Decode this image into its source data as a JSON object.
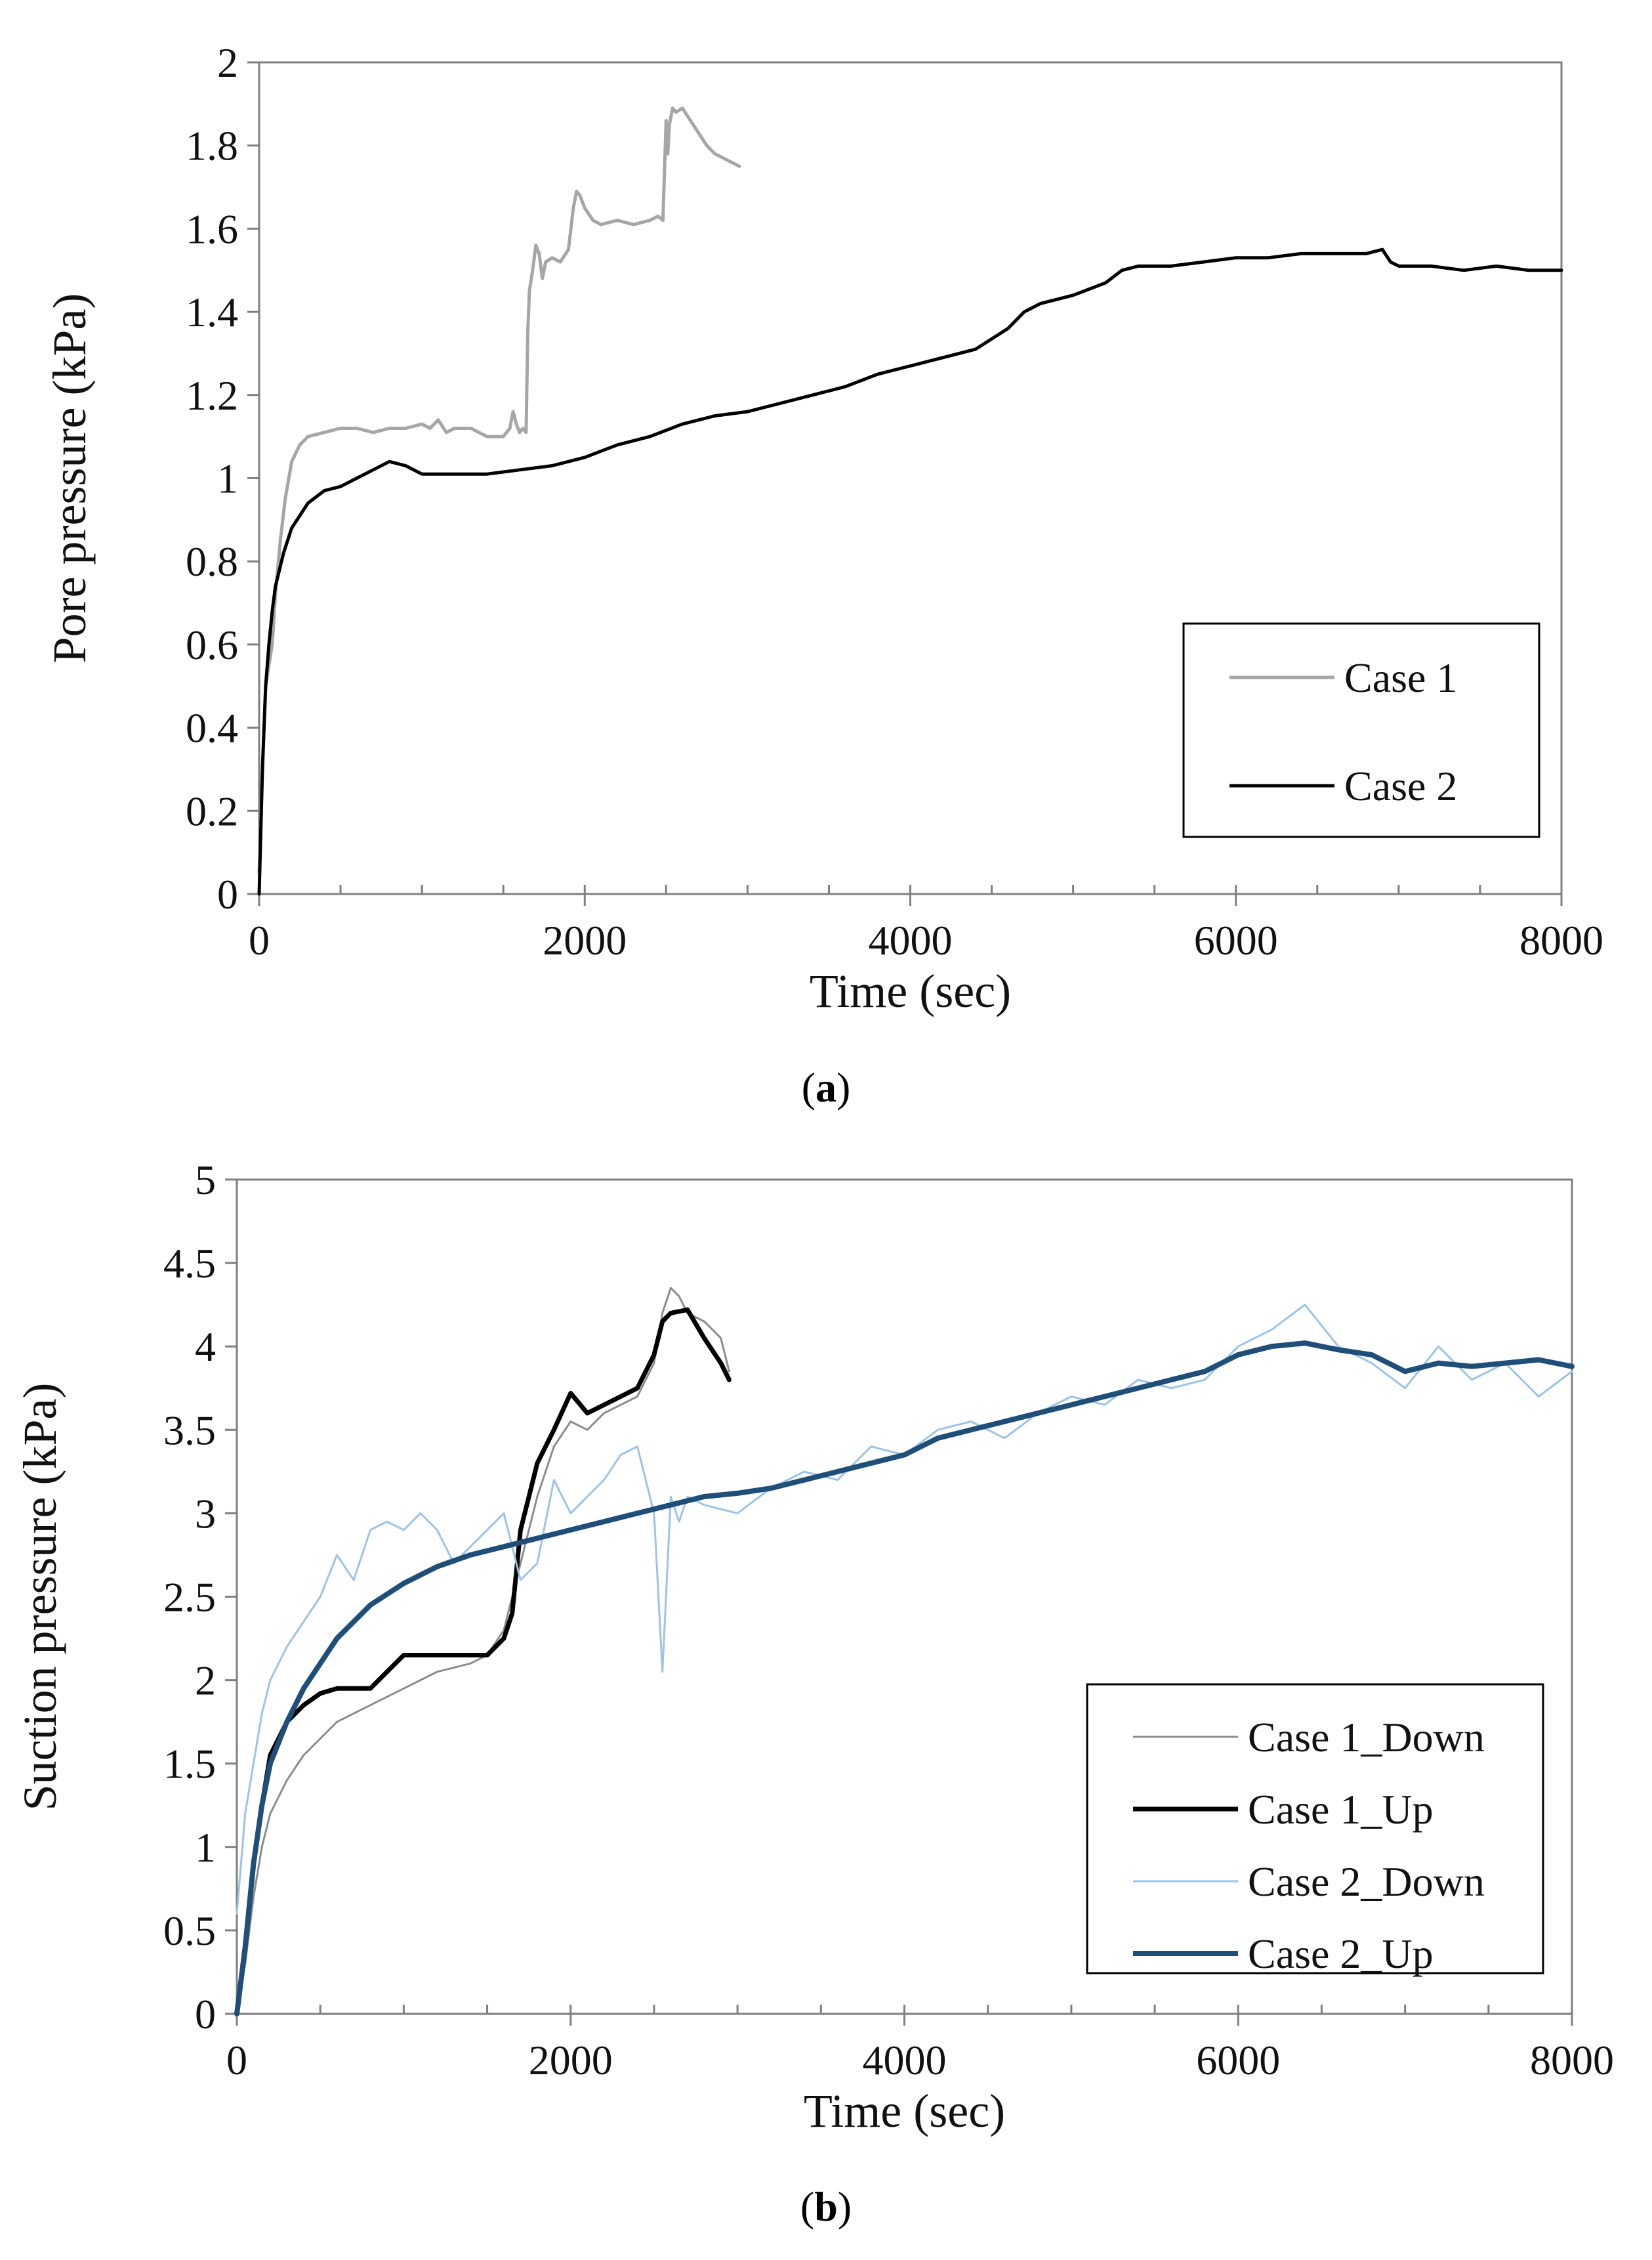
{
  "chart_data": [
    {
      "type": "line",
      "panel_label": "a",
      "xlabel": "Time (sec)",
      "ylabel": "Pore pressure (kPa)",
      "xlim": [
        0,
        8000
      ],
      "ylim": [
        0,
        2
      ],
      "x_ticks": [
        "0",
        "2000",
        "4000",
        "6000",
        "8000"
      ],
      "x_tick_values": [
        0,
        2000,
        4000,
        6000,
        8000
      ],
      "y_ticks": [
        "0",
        "0.2",
        "0.4",
        "0.6",
        "0.8",
        "1",
        "1.2",
        "1.4",
        "1.6",
        "1.8",
        "2"
      ],
      "y_tick_values": [
        0,
        0.2,
        0.4,
        0.6,
        0.8,
        1,
        1.2,
        1.4,
        1.6,
        1.8,
        2
      ],
      "grid": false,
      "legend_position": "bottom-right",
      "series": [
        {
          "name": "Case 1",
          "color": "#a6a6a6",
          "x": [
            0,
            20,
            40,
            60,
            80,
            100,
            130,
            160,
            200,
            250,
            300,
            400,
            500,
            600,
            700,
            800,
            900,
            1000,
            1050,
            1100,
            1150,
            1200,
            1300,
            1400,
            1500,
            1540,
            1560,
            1580,
            1600,
            1620,
            1640,
            1650,
            1660,
            1680,
            1700,
            1720,
            1740,
            1760,
            1800,
            1850,
            1900,
            1930,
            1950,
            1970,
            2000,
            2050,
            2100,
            2200,
            2300,
            2400,
            2450,
            2480,
            2500,
            2510,
            2520,
            2540,
            2560,
            2600,
            2650,
            2700,
            2750,
            2800,
            2850,
            2900,
            2950
          ],
          "values": [
            0.05,
            0.3,
            0.5,
            0.55,
            0.6,
            0.72,
            0.85,
            0.95,
            1.04,
            1.08,
            1.1,
            1.11,
            1.12,
            1.12,
            1.11,
            1.12,
            1.12,
            1.13,
            1.12,
            1.14,
            1.11,
            1.12,
            1.12,
            1.1,
            1.1,
            1.12,
            1.16,
            1.13,
            1.11,
            1.12,
            1.11,
            1.35,
            1.45,
            1.5,
            1.56,
            1.54,
            1.48,
            1.52,
            1.53,
            1.52,
            1.55,
            1.65,
            1.69,
            1.68,
            1.65,
            1.62,
            1.61,
            1.62,
            1.61,
            1.62,
            1.63,
            1.62,
            1.86,
            1.78,
            1.85,
            1.89,
            1.88,
            1.89,
            1.86,
            1.83,
            1.8,
            1.78,
            1.77,
            1.76,
            1.75
          ]
        },
        {
          "name": "Case 2",
          "color": "#000000",
          "x": [
            0,
            20,
            40,
            60,
            80,
            100,
            150,
            200,
            300,
            400,
            500,
            600,
            700,
            800,
            900,
            1000,
            1200,
            1400,
            1600,
            1800,
            2000,
            2200,
            2400,
            2600,
            2800,
            3000,
            3200,
            3400,
            3600,
            3800,
            4000,
            4200,
            4400,
            4600,
            4700,
            4800,
            5000,
            5200,
            5300,
            5400,
            5600,
            5800,
            6000,
            6200,
            6400,
            6600,
            6800,
            6900,
            6950,
            7000,
            7100,
            7200,
            7400,
            7600,
            7800,
            8000
          ],
          "values": [
            0,
            0.3,
            0.5,
            0.6,
            0.68,
            0.74,
            0.82,
            0.88,
            0.94,
            0.97,
            0.98,
            1.0,
            1.02,
            1.04,
            1.03,
            1.01,
            1.01,
            1.01,
            1.02,
            1.03,
            1.05,
            1.08,
            1.1,
            1.13,
            1.15,
            1.16,
            1.18,
            1.2,
            1.22,
            1.25,
            1.27,
            1.29,
            1.31,
            1.36,
            1.4,
            1.42,
            1.44,
            1.47,
            1.5,
            1.51,
            1.51,
            1.52,
            1.53,
            1.53,
            1.54,
            1.54,
            1.54,
            1.55,
            1.52,
            1.51,
            1.51,
            1.51,
            1.5,
            1.51,
            1.5,
            1.5
          ]
        }
      ]
    },
    {
      "type": "line",
      "panel_label": "b",
      "xlabel": "Time (sec)",
      "ylabel": "Suction pressure (kPa)",
      "xlim": [
        0,
        8000
      ],
      "ylim": [
        0,
        5
      ],
      "x_ticks": [
        "0",
        "2000",
        "4000",
        "6000",
        "8000"
      ],
      "x_tick_values": [
        0,
        2000,
        4000,
        6000,
        8000
      ],
      "y_ticks": [
        "0",
        "0.5",
        "1",
        "1.5",
        "2",
        "2.5",
        "3",
        "3.5",
        "4",
        "4.5",
        "5"
      ],
      "y_tick_values": [
        0,
        0.5,
        1,
        1.5,
        2,
        2.5,
        3,
        3.5,
        4,
        4.5,
        5
      ],
      "grid": false,
      "legend_position": "bottom-right",
      "series": [
        {
          "name": "Case 1_Down",
          "color": "#8c8c8c",
          "x": [
            0,
            50,
            100,
            150,
            200,
            300,
            400,
            500,
            600,
            800,
            1000,
            1200,
            1400,
            1500,
            1600,
            1700,
            1800,
            1900,
            2000,
            2100,
            2200,
            2300,
            2400,
            2500,
            2550,
            2600,
            2650,
            2700,
            2800,
            2900,
            2950
          ],
          "values": [
            0,
            0.3,
            0.7,
            1.0,
            1.2,
            1.4,
            1.55,
            1.65,
            1.75,
            1.85,
            1.95,
            2.05,
            2.1,
            2.15,
            2.3,
            2.7,
            3.1,
            3.4,
            3.55,
            3.5,
            3.6,
            3.65,
            3.7,
            3.9,
            4.2,
            4.35,
            4.3,
            4.2,
            4.15,
            4.05,
            3.85
          ]
        },
        {
          "name": "Case 1_Up",
          "color": "#000000",
          "x": [
            0,
            50,
            100,
            150,
            200,
            300,
            400,
            500,
            600,
            800,
            900,
            1000,
            1200,
            1400,
            1500,
            1600,
            1650,
            1700,
            1750,
            1800,
            1900,
            2000,
            2100,
            2200,
            2300,
            2400,
            2500,
            2550,
            2600,
            2700,
            2800,
            2900,
            2950
          ],
          "values": [
            0,
            0.4,
            0.9,
            1.25,
            1.55,
            1.75,
            1.85,
            1.92,
            1.95,
            1.95,
            2.05,
            2.15,
            2.15,
            2.15,
            2.15,
            2.25,
            2.4,
            2.9,
            3.1,
            3.3,
            3.5,
            3.72,
            3.6,
            3.65,
            3.7,
            3.75,
            3.95,
            4.15,
            4.2,
            4.22,
            4.05,
            3.9,
            3.8
          ]
        },
        {
          "name": "Case 2_Down",
          "color": "#9dc3e6",
          "x": [
            0,
            50,
            100,
            150,
            200,
            300,
            400,
            500,
            600,
            700,
            800,
            900,
            1000,
            1100,
            1200,
            1300,
            1400,
            1500,
            1600,
            1700,
            1800,
            1900,
            2000,
            2100,
            2200,
            2300,
            2400,
            2500,
            2550,
            2600,
            2650,
            2700,
            2800,
            3000,
            3200,
            3400,
            3600,
            3800,
            4000,
            4200,
            4400,
            4600,
            4800,
            5000,
            5200,
            5400,
            5600,
            5800,
            6000,
            6200,
            6400,
            6600,
            6800,
            7000,
            7200,
            7400,
            7600,
            7800,
            8000
          ],
          "values": [
            0.6,
            1.2,
            1.5,
            1.8,
            2.0,
            2.2,
            2.35,
            2.5,
            2.75,
            2.6,
            2.9,
            2.95,
            2.9,
            3.0,
            2.9,
            2.7,
            2.8,
            2.9,
            3.0,
            2.6,
            2.7,
            3.2,
            3.0,
            3.1,
            3.2,
            3.35,
            3.4,
            3.0,
            2.05,
            3.1,
            2.95,
            3.1,
            3.05,
            3.0,
            3.15,
            3.25,
            3.2,
            3.4,
            3.35,
            3.5,
            3.55,
            3.45,
            3.6,
            3.7,
            3.65,
            3.8,
            3.75,
            3.8,
            4.0,
            4.1,
            4.25,
            4.0,
            3.9,
            3.75,
            4.0,
            3.8,
            3.9,
            3.7,
            3.85
          ]
        },
        {
          "name": "Case 2_Up",
          "color": "#1f4e79",
          "x": [
            0,
            50,
            100,
            150,
            200,
            300,
            400,
            500,
            600,
            700,
            800,
            1000,
            1200,
            1400,
            1600,
            1800,
            2000,
            2200,
            2400,
            2600,
            2800,
            3000,
            3200,
            3400,
            3600,
            3800,
            4000,
            4200,
            4400,
            4600,
            4800,
            5000,
            5200,
            5400,
            5600,
            5800,
            6000,
            6200,
            6400,
            6600,
            6800,
            7000,
            7200,
            7400,
            7600,
            7800,
            8000
          ],
          "values": [
            0,
            0.4,
            0.9,
            1.25,
            1.5,
            1.75,
            1.95,
            2.1,
            2.25,
            2.35,
            2.45,
            2.58,
            2.68,
            2.75,
            2.8,
            2.85,
            2.9,
            2.95,
            3.0,
            3.05,
            3.1,
            3.12,
            3.15,
            3.2,
            3.25,
            3.3,
            3.35,
            3.45,
            3.5,
            3.55,
            3.6,
            3.65,
            3.7,
            3.75,
            3.8,
            3.85,
            3.95,
            4.0,
            4.02,
            3.98,
            3.95,
            3.85,
            3.9,
            3.88,
            3.9,
            3.92,
            3.88
          ]
        }
      ]
    }
  ]
}
